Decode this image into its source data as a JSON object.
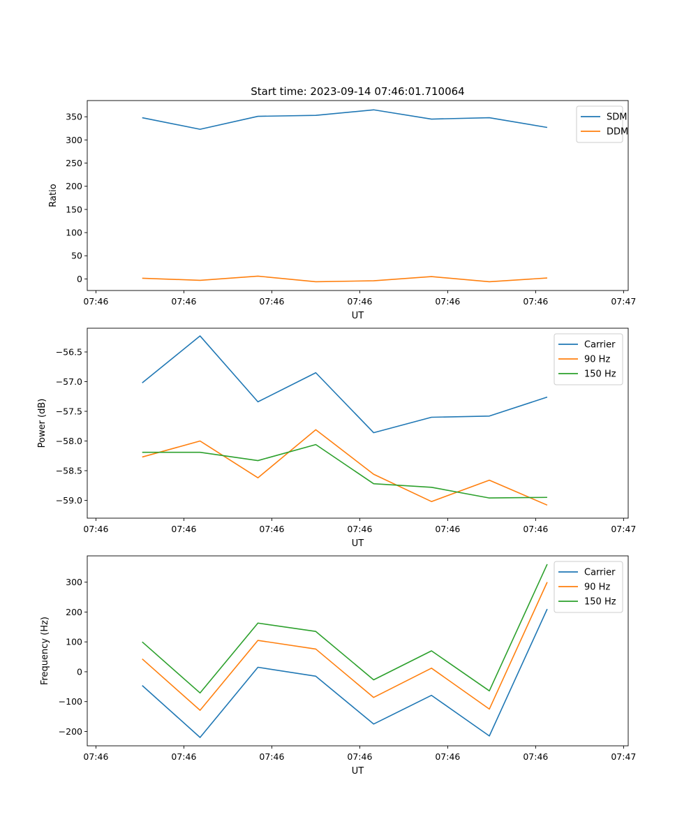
{
  "title": "Start time: 2023-09-14 07:46:01.710064",
  "colors": {
    "blue": "#1f77b4",
    "orange": "#ff7f0e",
    "green": "#2ca02c"
  },
  "chart_data": [
    {
      "type": "line",
      "title": "Start time: 2023-09-14 07:46:01.710064",
      "xlabel": "UT",
      "ylabel": "Ratio",
      "x": [
        1,
        2,
        3,
        4,
        5,
        6,
        7,
        8
      ],
      "xlim": [
        0.05,
        9.4
      ],
      "x_ticks": [
        0.2,
        1.72,
        3.24,
        4.76,
        6.28,
        7.8,
        9.32
      ],
      "x_tick_labels": [
        "07:46",
        "07:46",
        "07:46",
        "07:46",
        "07:46",
        "07:46",
        "07:47"
      ],
      "ylim": [
        -25,
        385
      ],
      "y_ticks": [
        0,
        50,
        100,
        150,
        200,
        250,
        300,
        350
      ],
      "y_tick_labels": [
        "0",
        "50",
        "100",
        "150",
        "200",
        "250",
        "300",
        "350"
      ],
      "legend_position": "top-right",
      "series": [
        {
          "name": "SDM",
          "color": "#1f77b4",
          "values": [
            348,
            323,
            351,
            353,
            365,
            345,
            348,
            327
          ]
        },
        {
          "name": "DDM",
          "color": "#ff7f0e",
          "values": [
            1.5,
            -3,
            6,
            -6,
            -4,
            5,
            -6,
            2
          ]
        }
      ]
    },
    {
      "type": "line",
      "xlabel": "UT",
      "ylabel": "Power (dB)",
      "x": [
        1,
        2,
        3,
        4,
        5,
        6,
        7,
        8
      ],
      "xlim": [
        0.05,
        9.4
      ],
      "x_ticks": [
        0.2,
        1.72,
        3.24,
        4.76,
        6.28,
        7.8,
        9.32
      ],
      "x_tick_labels": [
        "07:46",
        "07:46",
        "07:46",
        "07:46",
        "07:46",
        "07:46",
        "07:47"
      ],
      "ylim": [
        -59.3,
        -56.1
      ],
      "y_ticks": [
        -59.0,
        -58.5,
        -58.0,
        -57.5,
        -57.0,
        -56.5
      ],
      "y_tick_labels": [
        "−59.0",
        "−58.5",
        "−58.0",
        "−57.5",
        "−57.0",
        "−56.5"
      ],
      "legend_position": "top-right",
      "series": [
        {
          "name": "Carrier",
          "color": "#1f77b4",
          "values": [
            -57.02,
            -56.23,
            -57.34,
            -56.85,
            -57.86,
            -57.6,
            -57.58,
            -57.26
          ]
        },
        {
          "name": "90 Hz",
          "color": "#ff7f0e",
          "values": [
            -58.27,
            -58.0,
            -58.62,
            -57.81,
            -58.56,
            -59.02,
            -58.66,
            -59.08
          ]
        },
        {
          "name": "150 Hz",
          "color": "#2ca02c",
          "values": [
            -58.19,
            -58.19,
            -58.33,
            -58.06,
            -58.72,
            -58.78,
            -58.96,
            -58.95
          ]
        }
      ]
    },
    {
      "type": "line",
      "xlabel": "UT",
      "ylabel": "Frequency (Hz)",
      "x": [
        1,
        2,
        3,
        4,
        5,
        6,
        7,
        8
      ],
      "xlim": [
        0.05,
        9.4
      ],
      "x_ticks": [
        0.2,
        1.72,
        3.24,
        4.76,
        6.28,
        7.8,
        9.32
      ],
      "x_tick_labels": [
        "07:46",
        "07:46",
        "07:46",
        "07:46",
        "07:46",
        "07:46",
        "07:47"
      ],
      "ylim": [
        -248,
        388
      ],
      "y_ticks": [
        -200,
        -100,
        0,
        100,
        200,
        300
      ],
      "y_tick_labels": [
        "−200",
        "−100",
        "0",
        "100",
        "200",
        "300"
      ],
      "legend_position": "top-right",
      "series": [
        {
          "name": "Carrier",
          "color": "#1f77b4",
          "values": [
            -46,
            -220,
            15,
            -15,
            -175,
            -79,
            -215,
            210
          ]
        },
        {
          "name": "90 Hz",
          "color": "#ff7f0e",
          "values": [
            43,
            -129,
            105,
            76,
            -86,
            12,
            -125,
            300
          ]
        },
        {
          "name": "150 Hz",
          "color": "#2ca02c",
          "values": [
            100,
            -71,
            163,
            135,
            -27,
            70,
            -64,
            360
          ]
        }
      ]
    }
  ]
}
